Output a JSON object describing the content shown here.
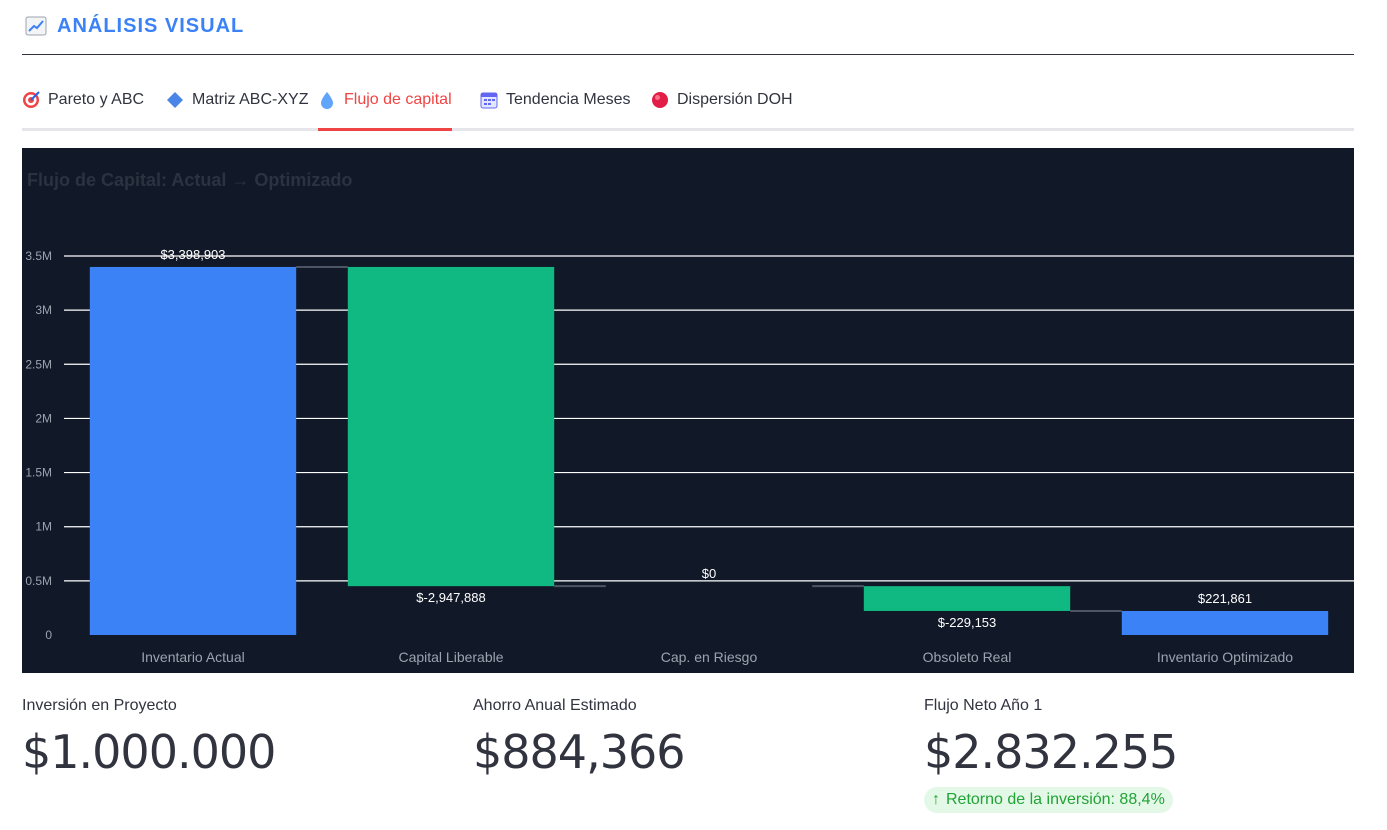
{
  "header": {
    "icon": "chart-trend-icon",
    "title": "ANÁLISIS VISUAL"
  },
  "tabs": [
    {
      "label": "Pareto y ABC",
      "icon": "target-icon"
    },
    {
      "label": "Matriz ABC-XYZ",
      "icon": "diamond-icon"
    },
    {
      "label": "Flujo de capital",
      "icon": "droplet-icon",
      "active": true
    },
    {
      "label": "Tendencia Meses",
      "icon": "calendar-icon"
    },
    {
      "label": "Dispersión DOH",
      "icon": "red-circle-icon"
    }
  ],
  "colors": {
    "accent": "#3b82f6",
    "active_tab": "#ef4444",
    "chart_bg": "#111827",
    "increase": "#3b82f6",
    "decrease": "#10b981"
  },
  "chart_data": {
    "type": "waterfall",
    "title": "Flujo de Capital: Actual → Optimizado",
    "categories": [
      "Inventario Actual",
      "Capital Liberable",
      "Cap. en Riesgo",
      "Obsoleto Real",
      "Inventario Optimizado"
    ],
    "measure": [
      "absolute",
      "relative",
      "relative",
      "relative",
      "total"
    ],
    "values": [
      3398903,
      -2947888,
      0,
      -229153,
      221861
    ],
    "data_labels": [
      "$3,398,903",
      "$-2,947,888",
      "$0",
      "$-229,153",
      "$221,861"
    ],
    "y_ticks": [
      "0",
      "0.5M",
      "1M",
      "1.5M",
      "2M",
      "2.5M",
      "3M",
      "3.5M"
    ],
    "ylim": [
      0,
      3500000
    ],
    "grid": true
  },
  "metrics": [
    {
      "label": "Inversión en Proyecto",
      "value": "$1.000.000"
    },
    {
      "label": "Ahorro Anual Estimado",
      "value": "$884,366"
    },
    {
      "label": "Flujo Neto Año 1",
      "value": "$2.832.255",
      "delta": "Retorno de la inversión: 88,4%"
    }
  ]
}
